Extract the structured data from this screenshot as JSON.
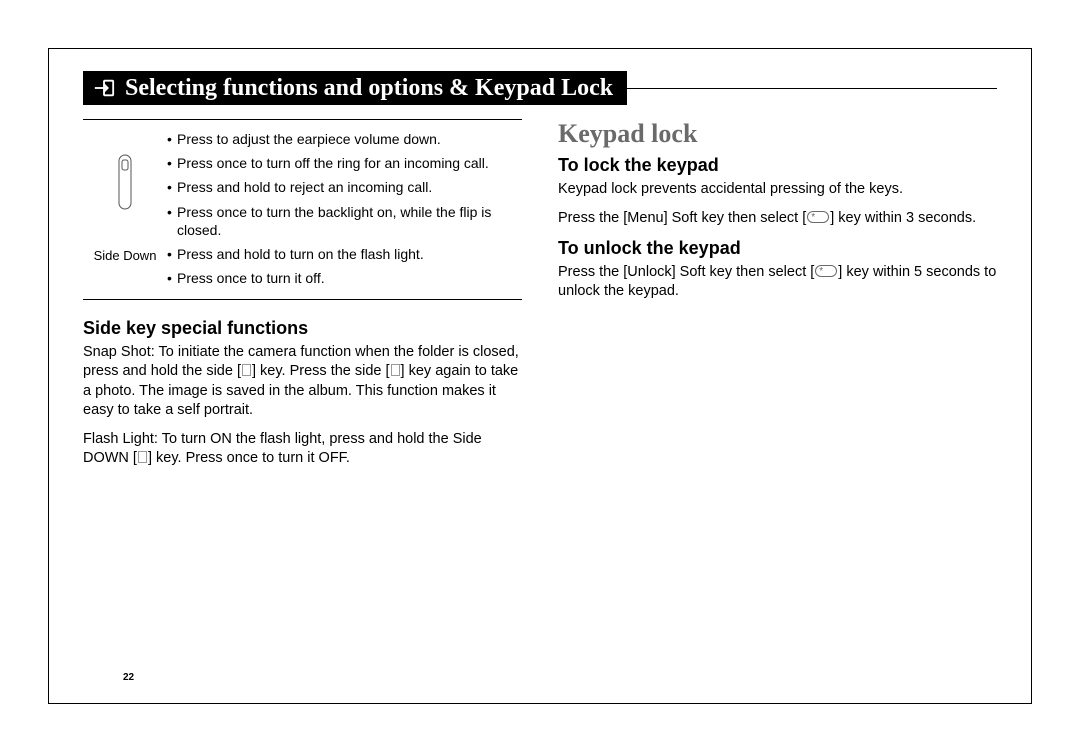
{
  "page": {
    "number": "22"
  },
  "title": "Selecting functions and options & Keypad Lock",
  "left": {
    "keytable": {
      "label": "Side Down",
      "items": [
        "Press to adjust the earpiece volume down.",
        "Press once to turn off the ring for an incoming call.",
        "Press and hold to reject an incoming call.",
        "Press once to turn the backlight on, while the flip is closed.",
        "Press and hold to turn on the flash light.",
        "Press once to turn it off."
      ]
    },
    "h3": "Side key special functions",
    "p1a": "Snap Shot: To initiate the camera function when the folder is closed, press and hold the side [",
    "p1b": "] key. Press the side [",
    "p1c": "] key again to take a photo. The image is saved in the album. This function makes it easy to take a self portrait.",
    "p2a": "Flash Light: To turn ON the flash light, press and hold the Side DOWN [",
    "p2b": "] key. Press once to turn it OFF."
  },
  "right": {
    "h2": "Keypad lock",
    "lock_h3": "To lock the keypad",
    "lock_p1": "Keypad lock prevents accidental pressing of the keys.",
    "lock_p2a": "Press the [Menu] Soft key then select [",
    "lock_p2b": "] key within 3 seconds.",
    "unlock_h3": "To unlock the keypad",
    "unlock_p1a": "Press the [Unlock] Soft key then select [",
    "unlock_p1b": "] key within 5 seconds to unlock the keypad."
  },
  "colors": {
    "page_border": "#000000",
    "heading_gray": "#6a6a6a",
    "text": "#000000",
    "bg": "#ffffff"
  },
  "typography": {
    "title_font": "Times New Roman",
    "title_size_pt": 18,
    "h2_size_pt": 20,
    "h3_size_pt": 14,
    "body_size_pt": 11
  }
}
